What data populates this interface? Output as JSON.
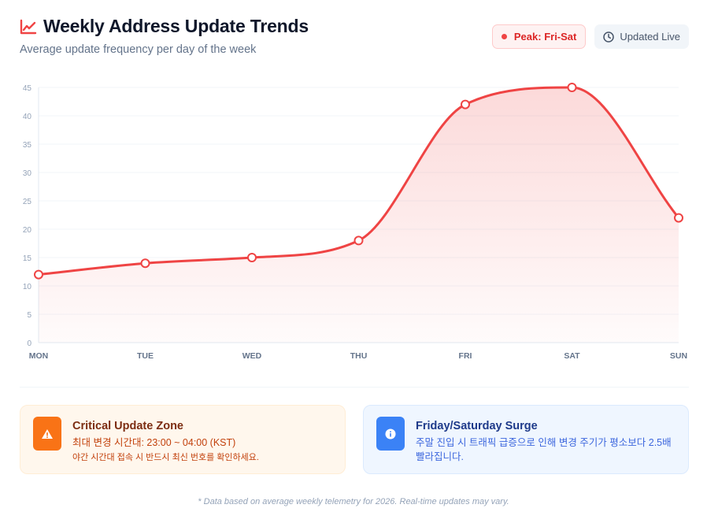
{
  "header": {
    "title": "Weekly Address Update Trends",
    "subtitle": "Average update frequency per day of the week",
    "icon": "trending-up-icon"
  },
  "badges": {
    "peak_label": "Peak: Fri-Sat",
    "live_label": "Updated Live"
  },
  "colors": {
    "accent": "#ef4444",
    "grid": "#f1f5f9",
    "axis_text": "#94a3b8",
    "xaxis_text": "#64748b",
    "orange": "#f97316",
    "blue": "#3b82f6"
  },
  "chart_data": {
    "type": "area",
    "title": "Weekly Address Update Trends",
    "categories": [
      "MON",
      "TUE",
      "WED",
      "THU",
      "FRI",
      "SAT",
      "SUN"
    ],
    "series": [
      {
        "name": "Average update frequency",
        "values": [
          12,
          14,
          15,
          18,
          42,
          45,
          22
        ]
      }
    ],
    "xlabel": "",
    "ylabel": "",
    "ylim": [
      0,
      45
    ],
    "yticks": [
      0,
      5,
      10,
      15,
      20,
      25,
      30,
      35,
      40,
      45
    ],
    "grid": true,
    "smooth": true,
    "legend": "none"
  },
  "cards": [
    {
      "title": "Critical Update Zone",
      "line1": "최대 변경 시간대: 23:00 ~ 04:00 (KST)",
      "line2": "야간 시간대 접속 시 반드시 최신 번호를 확인하세요.",
      "icon": "warning-icon"
    },
    {
      "title": "Friday/Saturday Surge",
      "line1": "주말 진입 시 트래픽 급증으로 인해 변경 주기가 평소보다 2.5배 빨라집니다.",
      "icon": "info-icon"
    }
  ],
  "footer": "* Data based on average weekly telemetry for 2026. Real-time updates may vary."
}
